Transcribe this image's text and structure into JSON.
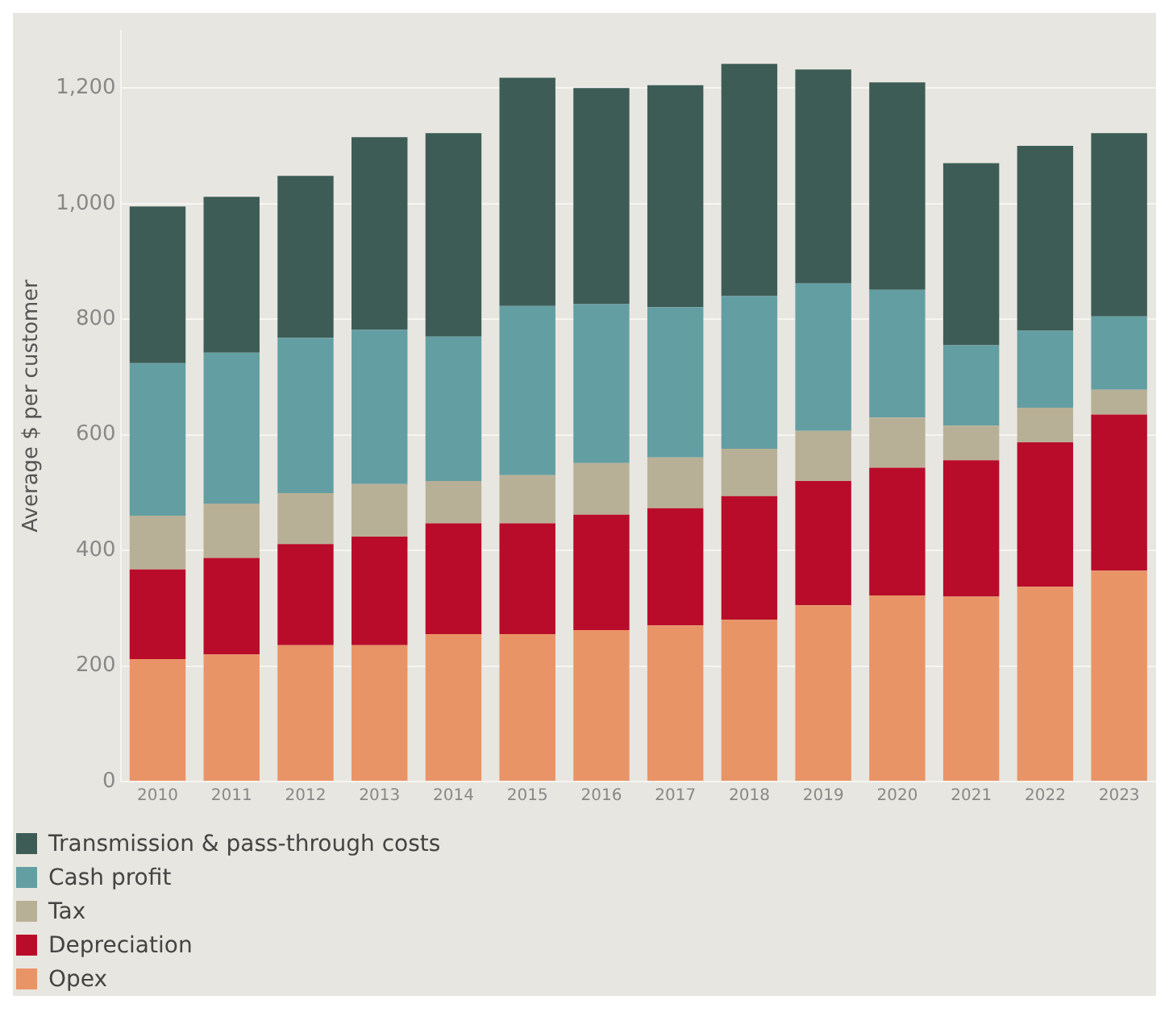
{
  "chart_data": {
    "type": "bar",
    "ylabel": "Average $ per customer",
    "categories": [
      "2010",
      "2011",
      "2012",
      "2013",
      "2014",
      "2015",
      "2016",
      "2017",
      "2018",
      "2019",
      "2020",
      "2021",
      "2022",
      "2023"
    ],
    "stacked": true,
    "series": [
      {
        "name": "Opex",
        "color": "#e99467",
        "values": [
          212,
          220,
          236,
          236,
          255,
          255,
          262,
          270,
          280,
          305,
          322,
          320,
          337,
          365
        ]
      },
      {
        "name": "Depreciation",
        "color": "#b90c2a",
        "values": [
          155,
          167,
          175,
          188,
          192,
          192,
          200,
          203,
          214,
          215,
          221,
          236,
          250,
          270
        ]
      },
      {
        "name": "Tax",
        "color": "#b8b096",
        "values": [
          93,
          94,
          88,
          91,
          73,
          83,
          89,
          88,
          82,
          87,
          87,
          60,
          60,
          43
        ]
      },
      {
        "name": "Cash profit",
        "color": "#639ea3",
        "values": [
          264,
          261,
          269,
          267,
          250,
          293,
          275,
          260,
          264,
          255,
          221,
          139,
          133,
          127
        ]
      },
      {
        "name": "Transmission & pass-through costs",
        "color": "#3d5c56",
        "values": [
          271,
          270,
          280,
          333,
          352,
          395,
          374,
          384,
          402,
          370,
          359,
          315,
          320,
          317
        ]
      }
    ],
    "ylim": [
      0,
      1300
    ],
    "yticks": [
      0,
      200,
      400,
      600,
      800,
      {
        "value": 1000,
        "label": "1,000"
      },
      {
        "value": 1200,
        "label": "1,200"
      }
    ],
    "grid": "y",
    "legend": "bottom left"
  }
}
